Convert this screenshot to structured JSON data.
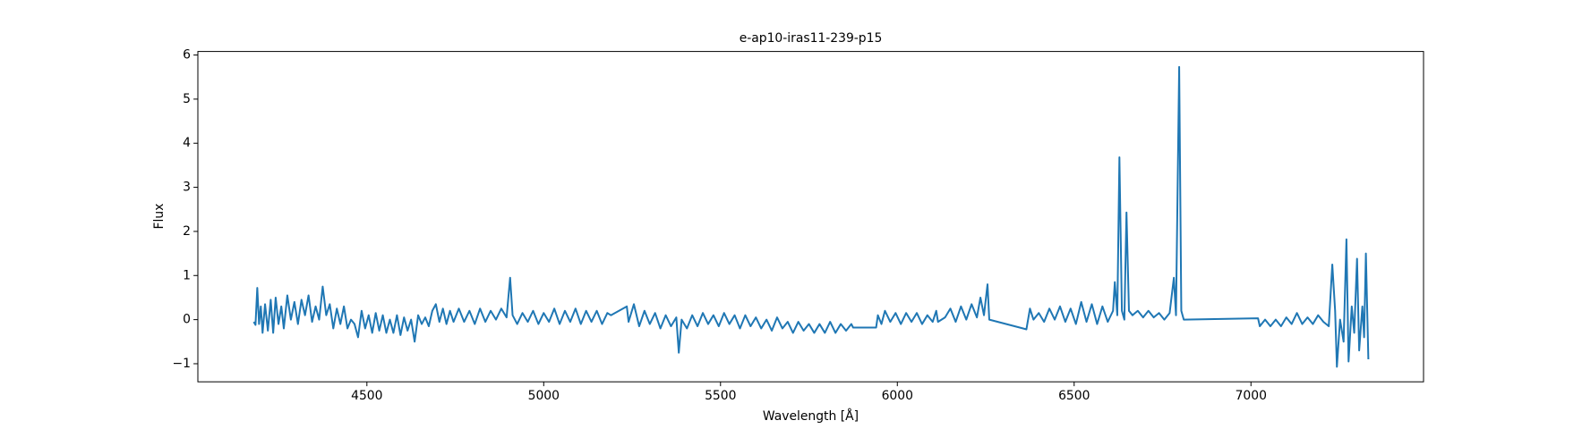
{
  "chart_data": {
    "type": "line",
    "title": "e-ap10-iras11-239-p15",
    "x_label": "Wavelength [Å]",
    "y_label": "Flux",
    "color": "#1f77b4",
    "xlim": [
      4022,
      7488
    ],
    "ylim": [
      -1.41,
      6.08
    ],
    "xticks": [
      4500,
      5000,
      5500,
      6000,
      6500,
      7000
    ],
    "yticks": [
      {
        "value": -1,
        "label": "−1"
      },
      0,
      1,
      2,
      3,
      4,
      5,
      6
    ],
    "x": [
      4180,
      4185,
      4190,
      4195,
      4200,
      4205,
      4212,
      4220,
      4228,
      4235,
      4242,
      4250,
      4258,
      4265,
      4275,
      4285,
      4295,
      4305,
      4315,
      4325,
      4335,
      4345,
      4355,
      4365,
      4375,
      4385,
      4395,
      4405,
      4415,
      4425,
      4435,
      4445,
      4455,
      4465,
      4475,
      4485,
      4495,
      4505,
      4515,
      4525,
      4535,
      4545,
      4555,
      4565,
      4575,
      4585,
      4595,
      4605,
      4615,
      4625,
      4635,
      4645,
      4655,
      4665,
      4675,
      4685,
      4695,
      4705,
      4715,
      4725,
      4735,
      4745,
      4760,
      4775,
      4790,
      4805,
      4820,
      4835,
      4850,
      4865,
      4880,
      4895,
      4905,
      4912,
      4925,
      4940,
      4955,
      4970,
      4985,
      5000,
      5015,
      5030,
      5045,
      5060,
      5075,
      5090,
      5105,
      5120,
      5135,
      5150,
      5165,
      5180,
      5190,
      5235,
      5240,
      5255,
      5270,
      5285,
      5300,
      5315,
      5330,
      5345,
      5360,
      5375,
      5382,
      5390,
      5405,
      5420,
      5435,
      5450,
      5465,
      5480,
      5495,
      5510,
      5525,
      5540,
      5555,
      5570,
      5585,
      5600,
      5615,
      5630,
      5645,
      5660,
      5675,
      5690,
      5705,
      5720,
      5735,
      5750,
      5765,
      5780,
      5795,
      5810,
      5825,
      5840,
      5855,
      5870,
      5875,
      5940,
      5945,
      5955,
      5965,
      5980,
      5995,
      6010,
      6025,
      6040,
      6055,
      6070,
      6085,
      6100,
      6110,
      6115,
      6135,
      6150,
      6165,
      6180,
      6195,
      6210,
      6225,
      6235,
      6245,
      6255,
      6260,
      6365,
      6375,
      6385,
      6400,
      6415,
      6430,
      6445,
      6460,
      6475,
      6490,
      6505,
      6520,
      6535,
      6550,
      6565,
      6580,
      6595,
      6610,
      6615,
      6622,
      6628,
      6635,
      6642,
      6648,
      6655,
      6665,
      6680,
      6695,
      6710,
      6725,
      6740,
      6755,
      6770,
      6782,
      6788,
      6797,
      6803,
      6810,
      7020,
      7025,
      7040,
      7055,
      7070,
      7085,
      7100,
      7115,
      7130,
      7145,
      7160,
      7175,
      7190,
      7205,
      7220,
      7230,
      7238,
      7243,
      7252,
      7262,
      7270,
      7276,
      7285,
      7292,
      7300,
      7306,
      7315,
      7320,
      7325,
      7332
    ],
    "values": [
      -0.05,
      -0.12,
      0.72,
      -0.1,
      0.3,
      -0.3,
      0.35,
      -0.25,
      0.45,
      -0.3,
      0.5,
      -0.1,
      0.3,
      -0.2,
      0.55,
      0.0,
      0.4,
      -0.1,
      0.45,
      0.1,
      0.55,
      -0.05,
      0.3,
      0.0,
      0.75,
      0.1,
      0.35,
      -0.2,
      0.25,
      -0.1,
      0.3,
      -0.2,
      0.0,
      -0.1,
      -0.4,
      0.2,
      -0.2,
      0.1,
      -0.3,
      0.15,
      -0.25,
      0.1,
      -0.3,
      0.0,
      -0.3,
      0.1,
      -0.35,
      0.05,
      -0.25,
      0.0,
      -0.5,
      0.1,
      -0.1,
      0.05,
      -0.15,
      0.2,
      0.35,
      -0.05,
      0.25,
      -0.1,
      0.2,
      -0.05,
      0.25,
      -0.05,
      0.2,
      -0.1,
      0.25,
      -0.05,
      0.2,
      0.0,
      0.25,
      0.05,
      0.95,
      0.1,
      -0.1,
      0.15,
      -0.05,
      0.2,
      -0.1,
      0.15,
      -0.05,
      0.25,
      -0.1,
      0.2,
      -0.05,
      0.25,
      -0.1,
      0.2,
      -0.05,
      0.2,
      -0.1,
      0.15,
      0.1,
      0.3,
      -0.05,
      0.35,
      -0.15,
      0.2,
      -0.1,
      0.15,
      -0.2,
      0.1,
      -0.15,
      0.05,
      -0.75,
      0.0,
      -0.2,
      0.1,
      -0.15,
      0.15,
      -0.1,
      0.1,
      -0.15,
      0.15,
      -0.1,
      0.1,
      -0.2,
      0.1,
      -0.15,
      0.05,
      -0.2,
      0.0,
      -0.25,
      0.05,
      -0.2,
      -0.05,
      -0.3,
      -0.05,
      -0.25,
      -0.1,
      -0.3,
      -0.1,
      -0.3,
      -0.05,
      -0.3,
      -0.1,
      -0.25,
      -0.1,
      -0.18,
      -0.18,
      0.1,
      -0.1,
      0.2,
      -0.05,
      0.15,
      -0.1,
      0.15,
      -0.05,
      0.15,
      -0.1,
      0.1,
      -0.05,
      0.2,
      -0.05,
      0.05,
      0.25,
      -0.05,
      0.3,
      0.0,
      0.35,
      0.05,
      0.5,
      0.1,
      0.8,
      0.0,
      -0.22,
      0.25,
      0.0,
      0.15,
      -0.05,
      0.25,
      0.0,
      0.3,
      -0.05,
      0.25,
      -0.1,
      0.4,
      -0.05,
      0.35,
      -0.1,
      0.3,
      -0.05,
      0.2,
      0.85,
      0.1,
      3.68,
      0.2,
      0.0,
      2.43,
      0.2,
      0.1,
      0.2,
      0.05,
      0.2,
      0.05,
      0.15,
      0.0,
      0.15,
      0.95,
      0.1,
      5.73,
      0.2,
      0.0,
      0.03,
      -0.15,
      0.0,
      -0.15,
      0.0,
      -0.15,
      0.05,
      -0.1,
      0.15,
      -0.1,
      0.05,
      -0.1,
      0.1,
      -0.05,
      -0.15,
      1.25,
      0.2,
      -1.07,
      0.0,
      -0.5,
      1.82,
      -0.95,
      0.3,
      -0.3,
      1.38,
      -0.7,
      0.3,
      -0.4,
      1.5,
      -0.9
    ]
  }
}
